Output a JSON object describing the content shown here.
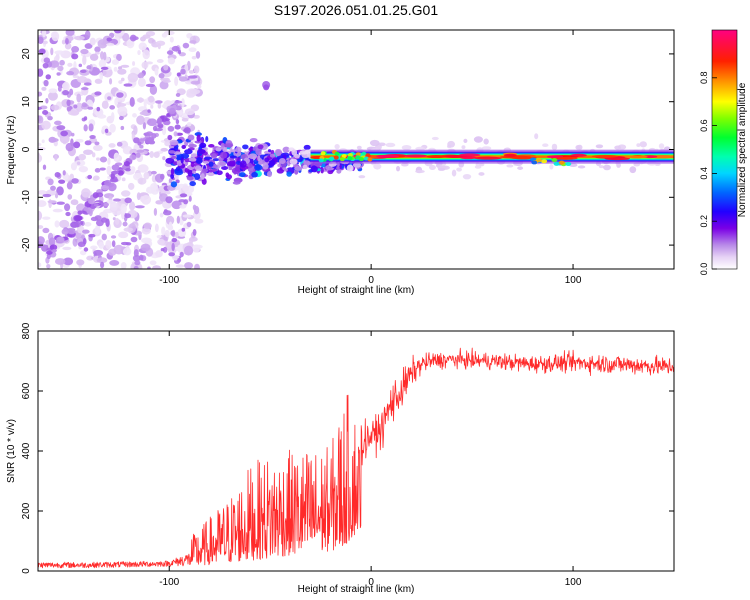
{
  "title": "S197.2026.051.01.25.G01",
  "chart_data": [
    {
      "type": "heatmap",
      "name": "spectrogram",
      "xlabel": "Height of straight line (km)",
      "ylabel": "Frequency (Hz)",
      "xlim": [
        -165,
        150
      ],
      "ylim": [
        -25,
        25
      ],
      "xticks": [
        -100,
        0,
        100
      ],
      "yticks": [
        -20,
        -10,
        0,
        10,
        20
      ],
      "colorbar": {
        "label": "Normalized spectral amplitude",
        "range": [
          0,
          1
        ],
        "ticks": [
          0.0,
          0.2,
          0.4,
          0.6,
          0.8
        ],
        "colormap": [
          "#ffffff",
          "#e6d2f5",
          "#c9a3ee",
          "#9b55e6",
          "#7a00e6",
          "#3300ff",
          "#0044ff",
          "#00bfff",
          "#00ffd0",
          "#00ff40",
          "#80ff00",
          "#ffff00",
          "#ff8000",
          "#ff0000",
          "#ff0080"
        ]
      },
      "features": {
        "carrier_line": {
          "x_start": -30,
          "x_end": 150,
          "frequency_hz": -1.5,
          "amplitude": 0.95
        },
        "noisy_region": {
          "x_start": -165,
          "x_end": -100,
          "frequency_range": [
            -25,
            25
          ],
          "amplitude": 0.25
        },
        "diagonal_drift_line": {
          "x": [
            -160,
            -95
          ],
          "frequency": [
            -22,
            10
          ]
        },
        "transition_region": {
          "x_start": -100,
          "x_end": -30,
          "frequency_range": [
            -10,
            5
          ],
          "amplitude": 0.5
        },
        "isolated_spot": {
          "x": -52,
          "frequency": 13.5
        }
      }
    },
    {
      "type": "line",
      "name": "snr",
      "xlabel": "Height of straight line (km)",
      "ylabel": "SNR (10 * v/v)",
      "xlim": [
        -165,
        150
      ],
      "ylim": [
        0,
        800
      ],
      "xticks": [
        -100,
        0,
        100
      ],
      "yticks": [
        0,
        200,
        400,
        600,
        800
      ],
      "color": "#ff2a2a",
      "series": [
        {
          "name": "SNR",
          "x": [
            -165,
            -140,
            -120,
            -100,
            -90,
            -80,
            -70,
            -60,
            -50,
            -40,
            -30,
            -20,
            -15,
            -10,
            -5,
            0,
            5,
            10,
            15,
            20,
            25,
            30,
            40,
            60,
            80,
            100,
            120,
            150
          ],
          "mean": [
            20,
            20,
            22,
            25,
            40,
            60,
            80,
            100,
            120,
            150,
            170,
            190,
            210,
            300,
            420,
            450,
            470,
            560,
            600,
            660,
            690,
            700,
            705,
            700,
            690,
            695,
            690,
            680
          ],
          "spread": [
            12,
            12,
            12,
            12,
            30,
            50,
            70,
            100,
            110,
            110,
            110,
            110,
            150,
            160,
            90,
            60,
            80,
            90,
            80,
            60,
            40,
            35,
            35,
            35,
            35,
            40,
            40,
            40
          ]
        }
      ]
    }
  ]
}
